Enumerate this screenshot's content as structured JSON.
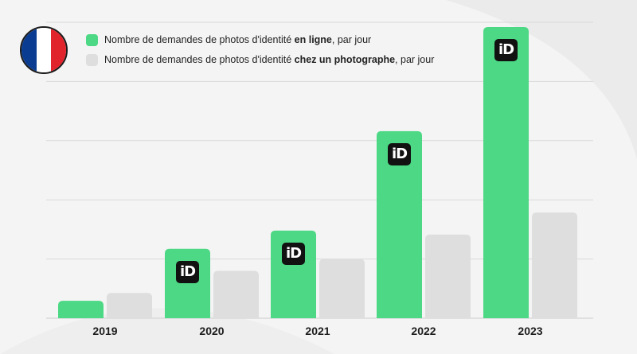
{
  "colors": {
    "online": "#4cd884",
    "photographer": "#dedede",
    "grid": "#d9d9d9",
    "flag_blue": "#0a3d91",
    "flag_white": "#ffffff",
    "flag_red": "#e1242b"
  },
  "flag_icon": "france-flag-icon",
  "badge_icon": "id-logo-icon",
  "legend": [
    {
      "prefix": "Nombre de demandes de photos d'identité ",
      "bold": "en ligne",
      "suffix": ", par jour",
      "color_key": "online"
    },
    {
      "prefix": "Nombre de demandes de photos d'identité ",
      "bold": "chez un photographe",
      "suffix": ", par jour",
      "color_key": "photographer"
    }
  ],
  "chart_data": {
    "type": "bar",
    "categories": [
      "2019",
      "2020",
      "2021",
      "2022",
      "2023"
    ],
    "series": [
      {
        "values": [
          22,
          88,
          111,
          237,
          369
        ],
        "color_key": "online",
        "badge": [
          false,
          true,
          true,
          true,
          true
        ]
      },
      {
        "values": [
          32,
          60,
          75,
          106,
          134
        ],
        "color_key": "photographer",
        "badge": [
          false,
          false,
          false,
          false,
          false
        ]
      }
    ],
    "ylim": [
      0,
      375
    ],
    "grid": true,
    "legend_position": "top-left",
    "badge_label": "iD"
  }
}
